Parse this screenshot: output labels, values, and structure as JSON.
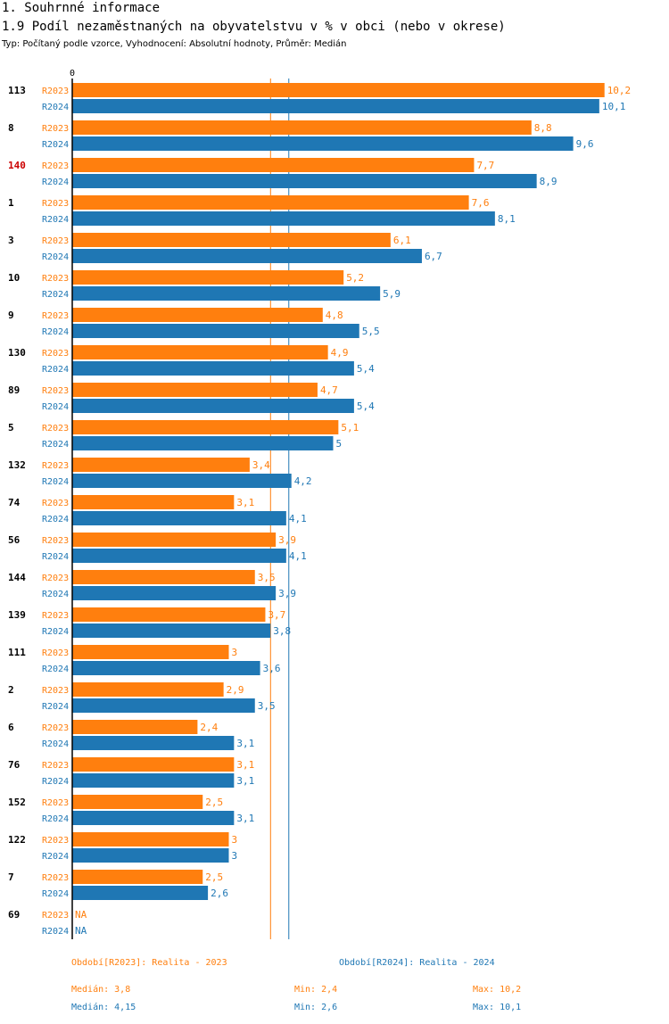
{
  "header": {
    "section_title": "1. Souhrnné informace",
    "chart_title": "1.9 Podíl nezaměstnaných na obyvatelstvu v % v obci (nebo v okrese)",
    "subtitle": "Typ: Počítaný podle vzorce, Vyhodnocení: Absolutní hodnoty, Průměr: Medián"
  },
  "colors": {
    "r2023": "#ff7f0e",
    "r2024": "#1f77b4",
    "highlight": "#cc0000",
    "axis": "#000000"
  },
  "chart_data": {
    "type": "bar",
    "orientation": "horizontal",
    "axis_zero_label": "0",
    "xlim": [
      0,
      10.2
    ],
    "categories": [
      "113",
      "8",
      "140",
      "1",
      "3",
      "10",
      "9",
      "130",
      "89",
      "5",
      "132",
      "74",
      "56",
      "144",
      "139",
      "111",
      "2",
      "6",
      "76",
      "152",
      "122",
      "7",
      "69"
    ],
    "highlighted_category": "140",
    "series": [
      {
        "name": "R2023",
        "values": [
          10.2,
          8.8,
          7.7,
          7.6,
          6.1,
          5.2,
          4.8,
          4.9,
          4.7,
          5.1,
          3.4,
          3.1,
          3.9,
          3.5,
          3.7,
          3,
          2.9,
          2.4,
          3.1,
          2.5,
          3,
          2.5,
          null
        ],
        "labels": [
          "10,2",
          "8,8",
          "7,7",
          "7,6",
          "6,1",
          "5,2",
          "4,8",
          "4,9",
          "4,7",
          "5,1",
          "3,4",
          "3,1",
          "3,9",
          "3,5",
          "3,7",
          "3",
          "2,9",
          "2,4",
          "3,1",
          "2,5",
          "3",
          "2,5",
          "NA"
        ]
      },
      {
        "name": "R2024",
        "values": [
          10.1,
          9.6,
          8.9,
          8.1,
          6.7,
          5.9,
          5.5,
          5.4,
          5.4,
          5,
          4.2,
          4.1,
          4.1,
          3.9,
          3.8,
          3.6,
          3.5,
          3.1,
          3.1,
          3.1,
          3,
          2.6,
          null
        ],
        "labels": [
          "10,1",
          "9,6",
          "8,9",
          "8,1",
          "6,7",
          "5,9",
          "5,5",
          "5,4",
          "5,4",
          "5",
          "4,2",
          "4,1",
          "4,1",
          "3,9",
          "3,8",
          "3,6",
          "3,5",
          "3,1",
          "3,1",
          "3,1",
          "3",
          "2,6",
          "NA"
        ]
      }
    ],
    "reference_lines": [
      {
        "series": "R2023",
        "value": 3.8
      },
      {
        "series": "R2024",
        "value": 4.15
      }
    ]
  },
  "legend": {
    "r2023": {
      "period": "Období[R2023]: Realita - 2023",
      "median": "Medián: 3,8",
      "min": "Min: 2,4",
      "max": "Max: 10,2"
    },
    "r2024": {
      "period": "Období[R2024]: Realita - 2024",
      "median": "Medián: 4,15",
      "min": "Min: 2,6",
      "max": "Max: 10,1"
    }
  }
}
